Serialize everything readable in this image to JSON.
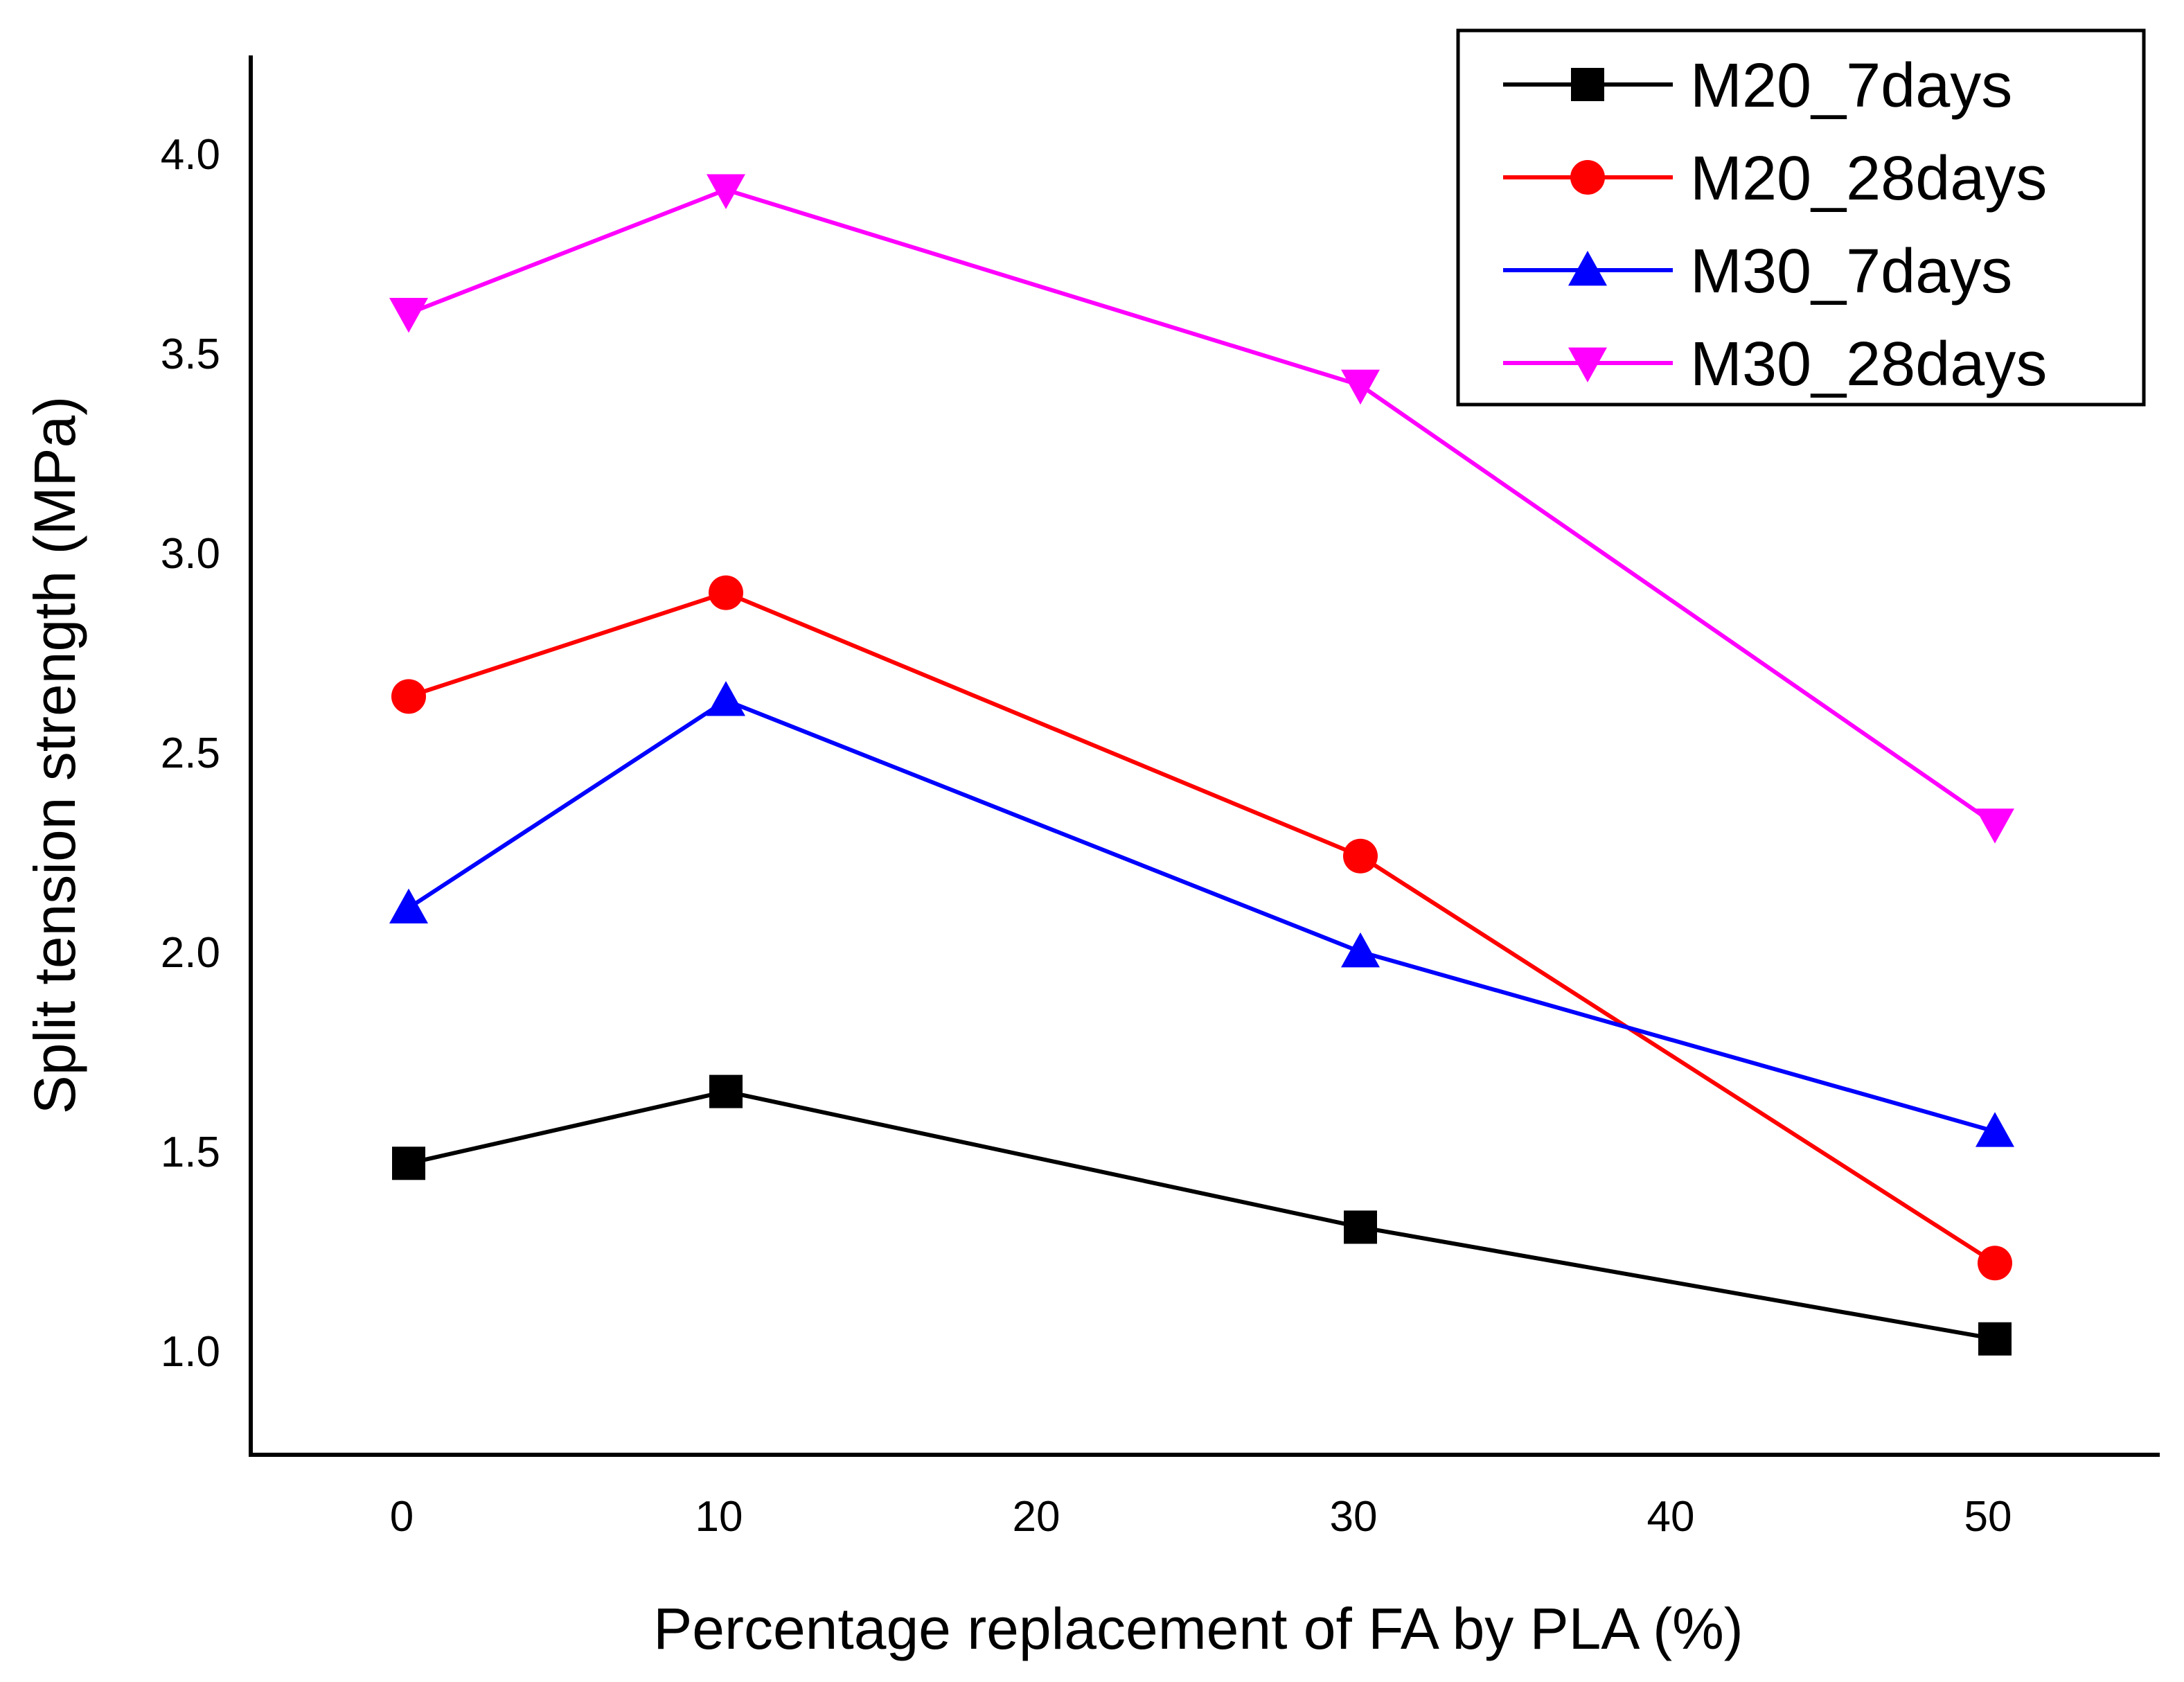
{
  "chart_data": {
    "type": "line",
    "xlabel": "Percentage replacement of FA by PLA (%)",
    "ylabel": "Split tension strength (MPa)",
    "xlim": [
      -5,
      55
    ],
    "ylim": [
      0.75,
      4.25
    ],
    "xticks": [
      0,
      10,
      20,
      30,
      40,
      50
    ],
    "yticks": [
      1.0,
      1.5,
      2.0,
      2.5,
      3.0,
      3.5,
      4.0
    ],
    "ytick_labels": [
      "1.0",
      "1.5",
      "2.0",
      "2.5",
      "3.0",
      "3.5",
      "4.0"
    ],
    "grid": false,
    "legend_position": "top-right",
    "x": [
      0,
      10,
      30,
      50
    ],
    "series": [
      {
        "name": "M20_7days",
        "color": "#000000",
        "marker": "square",
        "values": [
          1.47,
          1.65,
          1.31,
          1.03
        ]
      },
      {
        "name": "M20_28days",
        "color": "#ff0000",
        "marker": "circle",
        "values": [
          2.64,
          2.9,
          2.24,
          1.22
        ]
      },
      {
        "name": "M30_7days",
        "color": "#0000ff",
        "marker": "triangle-up",
        "values": [
          2.11,
          2.63,
          2.0,
          1.55
        ]
      },
      {
        "name": "M30_28days",
        "color": "#ff00ff",
        "marker": "triangle-down",
        "values": [
          3.6,
          3.91,
          3.42,
          2.32
        ]
      }
    ]
  }
}
